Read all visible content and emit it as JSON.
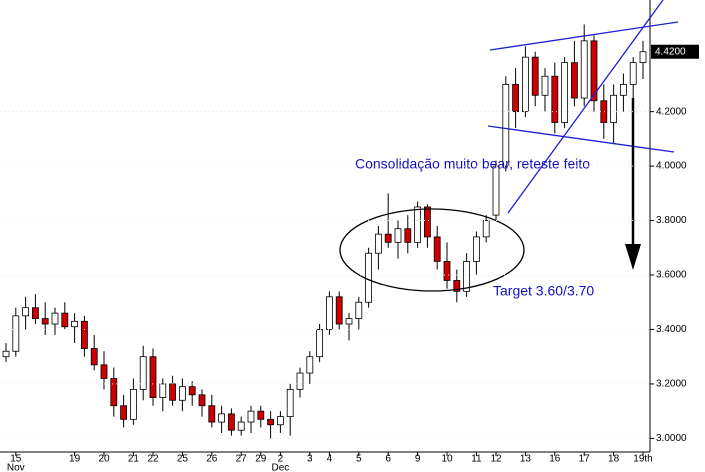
{
  "chart_data": {
    "type": "candlestick",
    "annotations": [
      "Consolidação muito bear, reteste feito",
      "Target 3.60/3.70"
    ],
    "categories": [
      null,
      "15",
      null,
      null,
      null,
      null,
      null,
      "19",
      null,
      null,
      "20",
      null,
      null,
      "21",
      null,
      "22",
      null,
      null,
      "25",
      null,
      null,
      "26",
      null,
      null,
      "27",
      null,
      "29",
      null,
      "2",
      null,
      null,
      "3",
      null,
      "4",
      null,
      null,
      "5",
      null,
      null,
      "6",
      null,
      null,
      "9",
      null,
      null,
      "10",
      null,
      null,
      "11",
      null,
      "12",
      null,
      null,
      "13",
      null,
      null,
      "16",
      null,
      null,
      "17",
      null,
      null,
      "18",
      null,
      null,
      "19th"
    ],
    "months": [
      null,
      "Nov",
      null,
      null,
      null,
      null,
      null,
      null,
      null,
      null,
      null,
      null,
      null,
      null,
      null,
      null,
      null,
      null,
      null,
      null,
      null,
      null,
      null,
      null,
      null,
      null,
      null,
      null,
      "Dec",
      null,
      null,
      null,
      null,
      null,
      null,
      null,
      null,
      null,
      null,
      null,
      null,
      null,
      null,
      null,
      null,
      null,
      null,
      null,
      null,
      null,
      null,
      null,
      null,
      null,
      null,
      null,
      null,
      null,
      null,
      null,
      null,
      null,
      null,
      null,
      null,
      null
    ],
    "candles": [
      {
        "o": 3.3,
        "h": 3.35,
        "l": 3.28,
        "c": 3.32
      },
      {
        "o": 3.32,
        "h": 3.48,
        "l": 3.3,
        "c": 3.45
      },
      {
        "o": 3.45,
        "h": 3.52,
        "l": 3.4,
        "c": 3.48
      },
      {
        "o": 3.48,
        "h": 3.53,
        "l": 3.42,
        "c": 3.44
      },
      {
        "o": 3.44,
        "h": 3.5,
        "l": 3.38,
        "c": 3.42
      },
      {
        "o": 3.42,
        "h": 3.48,
        "l": 3.38,
        "c": 3.46
      },
      {
        "o": 3.46,
        "h": 3.5,
        "l": 3.4,
        "c": 3.41
      },
      {
        "o": 3.41,
        "h": 3.46,
        "l": 3.35,
        "c": 3.43
      },
      {
        "o": 3.43,
        "h": 3.45,
        "l": 3.3,
        "c": 3.33
      },
      {
        "o": 3.33,
        "h": 3.38,
        "l": 3.25,
        "c": 3.27
      },
      {
        "o": 3.27,
        "h": 3.32,
        "l": 3.18,
        "c": 3.22
      },
      {
        "o": 3.22,
        "h": 3.26,
        "l": 3.08,
        "c": 3.12
      },
      {
        "o": 3.12,
        "h": 3.16,
        "l": 3.04,
        "c": 3.07
      },
      {
        "o": 3.07,
        "h": 3.22,
        "l": 3.05,
        "c": 3.18
      },
      {
        "o": 3.18,
        "h": 3.34,
        "l": 3.14,
        "c": 3.3
      },
      {
        "o": 3.3,
        "h": 3.33,
        "l": 3.12,
        "c": 3.15
      },
      {
        "o": 3.15,
        "h": 3.22,
        "l": 3.1,
        "c": 3.2
      },
      {
        "o": 3.2,
        "h": 3.23,
        "l": 3.12,
        "c": 3.14
      },
      {
        "o": 3.14,
        "h": 3.22,
        "l": 3.1,
        "c": 3.19
      },
      {
        "o": 3.19,
        "h": 3.21,
        "l": 3.12,
        "c": 3.16
      },
      {
        "o": 3.16,
        "h": 3.18,
        "l": 3.08,
        "c": 3.12
      },
      {
        "o": 3.12,
        "h": 3.16,
        "l": 3.04,
        "c": 3.06
      },
      {
        "o": 3.06,
        "h": 3.12,
        "l": 3.02,
        "c": 3.09
      },
      {
        "o": 3.09,
        "h": 3.11,
        "l": 3.01,
        "c": 3.03
      },
      {
        "o": 3.03,
        "h": 3.08,
        "l": 3.01,
        "c": 3.06
      },
      {
        "o": 3.06,
        "h": 3.12,
        "l": 3.02,
        "c": 3.1
      },
      {
        "o": 3.1,
        "h": 3.12,
        "l": 3.04,
        "c": 3.07
      },
      {
        "o": 3.07,
        "h": 3.1,
        "l": 3.0,
        "c": 3.05
      },
      {
        "o": 3.05,
        "h": 3.1,
        "l": 3.02,
        "c": 3.08
      },
      {
        "o": 3.08,
        "h": 3.2,
        "l": 3.01,
        "c": 3.18
      },
      {
        "o": 3.18,
        "h": 3.26,
        "l": 3.15,
        "c": 3.24
      },
      {
        "o": 3.24,
        "h": 3.32,
        "l": 3.2,
        "c": 3.3
      },
      {
        "o": 3.3,
        "h": 3.42,
        "l": 3.28,
        "c": 3.4
      },
      {
        "o": 3.4,
        "h": 3.54,
        "l": 3.38,
        "c": 3.52
      },
      {
        "o": 3.52,
        "h": 3.54,
        "l": 3.4,
        "c": 3.42
      },
      {
        "o": 3.42,
        "h": 3.46,
        "l": 3.36,
        "c": 3.44
      },
      {
        "o": 3.44,
        "h": 3.52,
        "l": 3.4,
        "c": 3.5
      },
      {
        "o": 3.5,
        "h": 3.7,
        "l": 3.48,
        "c": 3.68
      },
      {
        "o": 3.68,
        "h": 3.78,
        "l": 3.62,
        "c": 3.75
      },
      {
        "o": 3.75,
        "h": 3.9,
        "l": 3.7,
        "c": 3.72
      },
      {
        "o": 3.72,
        "h": 3.8,
        "l": 3.66,
        "c": 3.77
      },
      {
        "o": 3.77,
        "h": 3.82,
        "l": 3.68,
        "c": 3.72
      },
      {
        "o": 3.72,
        "h": 3.87,
        "l": 3.7,
        "c": 3.85
      },
      {
        "o": 3.85,
        "h": 3.86,
        "l": 3.7,
        "c": 3.74
      },
      {
        "o": 3.74,
        "h": 3.78,
        "l": 3.62,
        "c": 3.65
      },
      {
        "o": 3.65,
        "h": 3.72,
        "l": 3.55,
        "c": 3.58
      },
      {
        "o": 3.58,
        "h": 3.62,
        "l": 3.5,
        "c": 3.54
      },
      {
        "o": 3.54,
        "h": 3.68,
        "l": 3.52,
        "c": 3.65
      },
      {
        "o": 3.65,
        "h": 3.76,
        "l": 3.6,
        "c": 3.74
      },
      {
        "o": 3.74,
        "h": 3.82,
        "l": 3.72,
        "c": 3.8
      },
      {
        "o": 3.82,
        "h": 4.02,
        "l": 3.8,
        "c": 4.0
      },
      {
        "o": 4.0,
        "h": 4.33,
        "l": 3.98,
        "c": 4.3
      },
      {
        "o": 4.3,
        "h": 4.36,
        "l": 4.14,
        "c": 4.2
      },
      {
        "o": 4.2,
        "h": 4.44,
        "l": 4.18,
        "c": 4.4
      },
      {
        "o": 4.4,
        "h": 4.42,
        "l": 4.22,
        "c": 4.26
      },
      {
        "o": 4.26,
        "h": 4.36,
        "l": 4.2,
        "c": 4.33
      },
      {
        "o": 4.33,
        "h": 4.38,
        "l": 4.12,
        "c": 4.16
      },
      {
        "o": 4.16,
        "h": 4.4,
        "l": 4.14,
        "c": 4.38
      },
      {
        "o": 4.38,
        "h": 4.46,
        "l": 4.22,
        "c": 4.25
      },
      {
        "o": 4.25,
        "h": 4.52,
        "l": 4.22,
        "c": 4.46
      },
      {
        "o": 4.46,
        "h": 4.48,
        "l": 4.2,
        "c": 4.24
      },
      {
        "o": 4.24,
        "h": 4.3,
        "l": 4.1,
        "c": 4.16
      },
      {
        "o": 4.16,
        "h": 4.3,
        "l": 4.08,
        "c": 4.26
      },
      {
        "o": 4.26,
        "h": 4.34,
        "l": 4.2,
        "c": 4.3
      },
      {
        "o": 4.3,
        "h": 4.4,
        "l": 4.24,
        "c": 4.38
      },
      {
        "o": 4.38,
        "h": 4.46,
        "l": 4.32,
        "c": 4.42
      }
    ],
    "up_color": "#ffffff",
    "down_color": "#cc0000",
    "ylim": [
      2.95,
      4.61
    ],
    "yticks": [
      {
        "value": 3.0,
        "label": "3.0000"
      },
      {
        "value": 3.2,
        "label": "3.2000"
      },
      {
        "value": 3.4,
        "label": "3.4000"
      },
      {
        "value": 3.6,
        "label": "3.6000"
      },
      {
        "value": 3.8,
        "label": "3.8000"
      },
      {
        "value": 4.0,
        "label": "4.0000"
      },
      {
        "value": 4.2,
        "label": "4.2000"
      }
    ],
    "last_price": {
      "value": 4.42,
      "label": "4.4200"
    }
  }
}
